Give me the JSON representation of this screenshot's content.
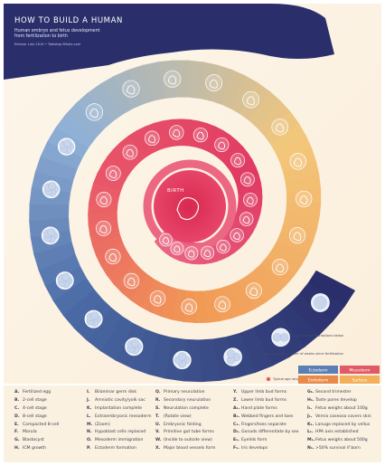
{
  "title": "HOW TO BUILD A HUMAN",
  "subtitle_line1": "Human embryo and fetus development",
  "subtitle_line2": "from fertilization to birth",
  "credit": "Eleanor Lutz 2014 • Tabletop Whale.com",
  "center_label": "BIRTH",
  "legend_note_week": "Approximate number of weeks since fertilization",
  "legend_note_numbered": "Numbered descriptions below",
  "legend_typical": "Typical age range at birth",
  "germ_layers": [
    {
      "label": "Ectoderm",
      "color": "#5a7fb5"
    },
    {
      "label": "Mesoderm",
      "color": "#e05a66"
    },
    {
      "label": "Endoderm",
      "color": "#e88a4a"
    },
    {
      "label": "Surface",
      "color": "#f3b05a"
    }
  ],
  "colors": {
    "spiral_dark": "#2a2f6b",
    "spiral_mid": "#e0455f",
    "spiral_light": "#f5b05a",
    "background": "#fbf1e0"
  },
  "descriptions": [
    [
      {
        "k": "A.",
        "v": "Fertilized egg"
      },
      {
        "k": "B.",
        "v": "2-cell stage"
      },
      {
        "k": "C.",
        "v": "4-cell stage"
      },
      {
        "k": "D.",
        "v": "8-cell stage"
      },
      {
        "k": "E.",
        "v": "Compacted 8-cell"
      },
      {
        "k": "F.",
        "v": "Morula"
      },
      {
        "k": "G.",
        "v": "Blastocyst"
      },
      {
        "k": "H.",
        "v": "ICM growth"
      }
    ],
    [
      {
        "k": "I.",
        "v": "Bilaminar germ disk"
      },
      {
        "k": "J.",
        "v": "Amniotic cavity/yolk sac"
      },
      {
        "k": "K.",
        "v": "Implantation complete"
      },
      {
        "k": "L.",
        "v": "Extraembryonic mesoderm"
      },
      {
        "k": "M.",
        "v": "(Zoom)"
      },
      {
        "k": "N.",
        "v": "Hypoblast cells replaced"
      },
      {
        "k": "O.",
        "v": "Mesoderm immigration"
      },
      {
        "k": "P.",
        "v": "Ectoderm formation"
      }
    ],
    [
      {
        "k": "Q.",
        "v": "Primary neurulation"
      },
      {
        "k": "R.",
        "v": "Secondary neurulation"
      },
      {
        "k": "S.",
        "v": "Neurulation complete"
      },
      {
        "k": "T.",
        "v": "(Rotate view)"
      },
      {
        "k": "U.",
        "v": "Embryonic folding"
      },
      {
        "k": "V.",
        "v": "Primitive gut tube forms"
      },
      {
        "k": "W.",
        "v": "(Inside to outside view)"
      },
      {
        "k": "X.",
        "v": "Major blood vessels form"
      }
    ],
    [
      {
        "k": "Y.",
        "v": "Upper limb bud forms"
      },
      {
        "k": "Z.",
        "v": "Lower limb bud forms"
      },
      {
        "k": "A₁.",
        "v": "Hand plate forms"
      },
      {
        "k": "B₁.",
        "v": "Webbed fingers and toes"
      },
      {
        "k": "C₁.",
        "v": "Fingers/toes separate"
      },
      {
        "k": "D₁.",
        "v": "Gonads differentiate by sex"
      },
      {
        "k": "E₁.",
        "v": "Eyelids form"
      },
      {
        "k": "F₁.",
        "v": "Iris develops"
      }
    ],
    [
      {
        "k": "G₁.",
        "v": "Second trimester"
      },
      {
        "k": "H₁.",
        "v": "Taste pores develop"
      },
      {
        "k": "I₁.",
        "v": "Fetus weighs about 100g"
      },
      {
        "k": "J₁.",
        "v": "Vernix caseosa covers skin"
      },
      {
        "k": "K₁.",
        "v": "Lanugo replaced by vellus"
      },
      {
        "k": "L₁.",
        "v": "HPA axis established"
      },
      {
        "k": "M₁.",
        "v": "Fetus weighs about 500g"
      },
      {
        "k": "N₁.",
        "v": ">50% survival if born"
      }
    ]
  ]
}
